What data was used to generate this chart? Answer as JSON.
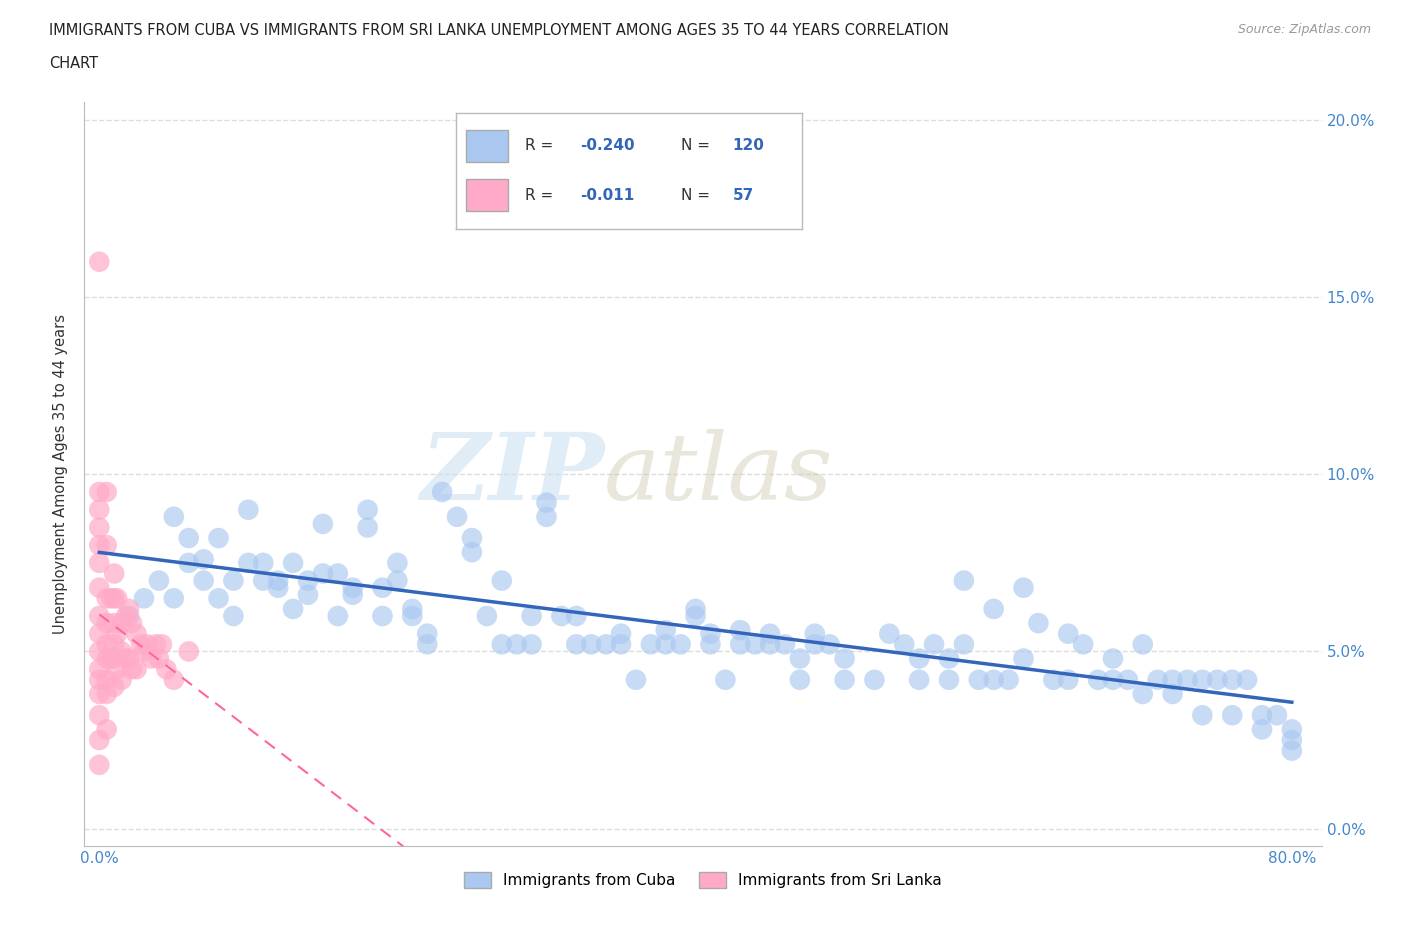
{
  "title_line1": "IMMIGRANTS FROM CUBA VS IMMIGRANTS FROM SRI LANKA UNEMPLOYMENT AMONG AGES 35 TO 44 YEARS CORRELATION",
  "title_line2": "CHART",
  "source": "Source: ZipAtlas.com",
  "ylabel": "Unemployment Among Ages 35 to 44 years",
  "xlim": [
    -0.01,
    0.82
  ],
  "ylim": [
    -0.005,
    0.205
  ],
  "xticks": [
    0.0,
    0.8
  ],
  "xticklabels": [
    "0.0%",
    "80.0%"
  ],
  "yticks": [
    0.0,
    0.05,
    0.1,
    0.15,
    0.2
  ],
  "yticklabels": [
    "0.0%",
    "5.0%",
    "10.0%",
    "15.0%",
    "20.0%"
  ],
  "cuba_color": "#aac8f0",
  "srilanka_color": "#ffaac8",
  "cuba_line_color": "#3366bb",
  "srilanka_line_color": "#ff6699",
  "watermark_zip": "ZIP",
  "watermark_atlas": "atlas",
  "legend_label_cuba": "Immigrants from Cuba",
  "legend_label_srilanka": "Immigrants from Sri Lanka",
  "background_color": "#ffffff",
  "grid_color": "#dddddd",
  "cuba_scatter_x": [
    0.02,
    0.03,
    0.04,
    0.05,
    0.06,
    0.07,
    0.08,
    0.09,
    0.1,
    0.11,
    0.12,
    0.13,
    0.14,
    0.15,
    0.16,
    0.17,
    0.18,
    0.19,
    0.2,
    0.21,
    0.22,
    0.23,
    0.24,
    0.25,
    0.26,
    0.27,
    0.28,
    0.29,
    0.3,
    0.31,
    0.32,
    0.33,
    0.34,
    0.35,
    0.36,
    0.37,
    0.38,
    0.39,
    0.4,
    0.41,
    0.42,
    0.43,
    0.44,
    0.45,
    0.46,
    0.47,
    0.48,
    0.49,
    0.5,
    0.52,
    0.54,
    0.55,
    0.56,
    0.57,
    0.58,
    0.59,
    0.6,
    0.61,
    0.62,
    0.63,
    0.64,
    0.65,
    0.66,
    0.67,
    0.68,
    0.69,
    0.7,
    0.71,
    0.72,
    0.73,
    0.74,
    0.75,
    0.76,
    0.77,
    0.78,
    0.79,
    0.05,
    0.06,
    0.07,
    0.08,
    0.09,
    0.1,
    0.11,
    0.12,
    0.13,
    0.14,
    0.15,
    0.16,
    0.17,
    0.18,
    0.19,
    0.2,
    0.21,
    0.22,
    0.25,
    0.27,
    0.29,
    0.3,
    0.32,
    0.35,
    0.38,
    0.4,
    0.41,
    0.43,
    0.45,
    0.47,
    0.48,
    0.5,
    0.53,
    0.55,
    0.57,
    0.58,
    0.6,
    0.62,
    0.65,
    0.68,
    0.7,
    0.72,
    0.74,
    0.76,
    0.78,
    0.8,
    0.8,
    0.8
  ],
  "cuba_scatter_y": [
    0.06,
    0.065,
    0.07,
    0.065,
    0.075,
    0.07,
    0.065,
    0.06,
    0.075,
    0.07,
    0.068,
    0.062,
    0.066,
    0.072,
    0.06,
    0.066,
    0.085,
    0.06,
    0.07,
    0.06,
    0.052,
    0.095,
    0.088,
    0.078,
    0.06,
    0.052,
    0.052,
    0.052,
    0.088,
    0.06,
    0.052,
    0.052,
    0.052,
    0.052,
    0.042,
    0.052,
    0.052,
    0.052,
    0.06,
    0.052,
    0.042,
    0.052,
    0.052,
    0.052,
    0.052,
    0.042,
    0.052,
    0.052,
    0.042,
    0.042,
    0.052,
    0.042,
    0.052,
    0.042,
    0.052,
    0.042,
    0.042,
    0.042,
    0.068,
    0.058,
    0.042,
    0.042,
    0.052,
    0.042,
    0.042,
    0.042,
    0.052,
    0.042,
    0.042,
    0.042,
    0.042,
    0.042,
    0.042,
    0.042,
    0.032,
    0.032,
    0.088,
    0.082,
    0.076,
    0.082,
    0.07,
    0.09,
    0.075,
    0.07,
    0.075,
    0.07,
    0.086,
    0.072,
    0.068,
    0.09,
    0.068,
    0.075,
    0.062,
    0.055,
    0.082,
    0.07,
    0.06,
    0.092,
    0.06,
    0.055,
    0.056,
    0.062,
    0.055,
    0.056,
    0.055,
    0.048,
    0.055,
    0.048,
    0.055,
    0.048,
    0.048,
    0.07,
    0.062,
    0.048,
    0.055,
    0.048,
    0.038,
    0.038,
    0.032,
    0.032,
    0.028,
    0.028,
    0.025,
    0.022
  ],
  "srilanka_scatter_x": [
    0.0,
    0.0,
    0.0,
    0.0,
    0.0,
    0.0,
    0.0,
    0.0,
    0.0,
    0.0,
    0.0,
    0.0,
    0.0,
    0.0,
    0.0,
    0.0,
    0.005,
    0.005,
    0.005,
    0.005,
    0.005,
    0.005,
    0.005,
    0.005,
    0.005,
    0.008,
    0.008,
    0.01,
    0.01,
    0.01,
    0.01,
    0.01,
    0.01,
    0.012,
    0.012,
    0.012,
    0.015,
    0.015,
    0.015,
    0.018,
    0.018,
    0.02,
    0.02,
    0.022,
    0.022,
    0.025,
    0.025,
    0.028,
    0.03,
    0.032,
    0.035,
    0.038,
    0.04,
    0.042,
    0.045,
    0.05,
    0.06
  ],
  "srilanka_scatter_y": [
    0.16,
    0.095,
    0.09,
    0.085,
    0.08,
    0.075,
    0.068,
    0.06,
    0.055,
    0.05,
    0.045,
    0.042,
    0.038,
    0.032,
    0.025,
    0.018,
    0.095,
    0.08,
    0.065,
    0.058,
    0.052,
    0.048,
    0.042,
    0.038,
    0.028,
    0.065,
    0.048,
    0.072,
    0.065,
    0.058,
    0.052,
    0.048,
    0.04,
    0.065,
    0.055,
    0.045,
    0.058,
    0.05,
    0.042,
    0.06,
    0.048,
    0.062,
    0.048,
    0.058,
    0.045,
    0.055,
    0.045,
    0.052,
    0.05,
    0.052,
    0.048,
    0.052,
    0.048,
    0.052,
    0.045,
    0.042,
    0.05
  ]
}
